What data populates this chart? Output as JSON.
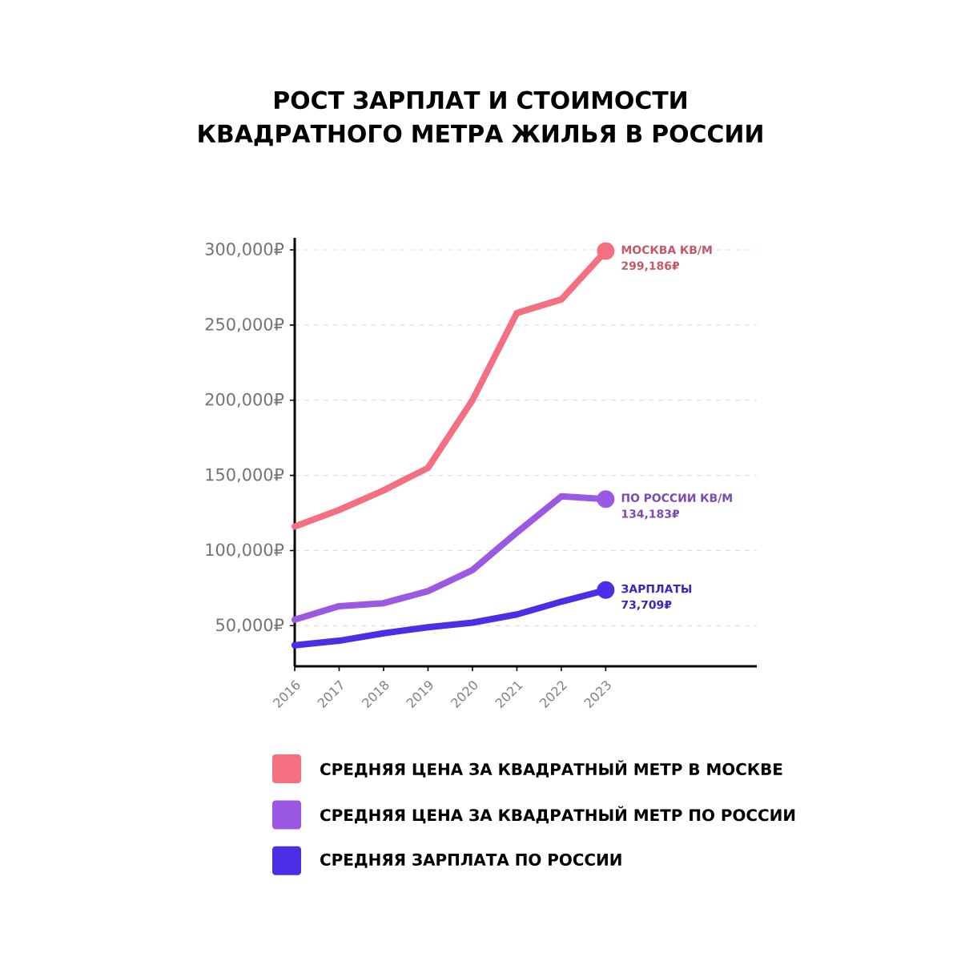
{
  "chart_data": {
    "type": "line",
    "title": "РОСТ ЗАРПЛАТ И СТОИМОСТИ КВАДРАТНОГО МЕТРА ЖИЛЬЯ В РОССИИ",
    "x": [
      2016,
      2017,
      2018,
      2019,
      2020,
      2021,
      2022,
      2023
    ],
    "series": [
      {
        "name": "СРЕДНЯЯ ЦЕНА ЗА КВАДРАТНЫЙ МЕТР В МОСКВЕ",
        "color": "#f46f80",
        "values": [
          116000,
          127000,
          140000,
          155000,
          200000,
          258000,
          267000,
          299186
        ]
      },
      {
        "name": "СРЕДНЯЯ ЦЕНА ЗА КВАДРАТНЫЙ МЕТР ПО РОССИИ",
        "color": "#9b59e3",
        "values": [
          54000,
          63000,
          65000,
          73000,
          87000,
          112000,
          136000,
          134183
        ]
      },
      {
        "name": "СРЕДНЯЯ ЗАРПЛАТА ПО РОССИИ",
        "color": "#4b2fe6",
        "values": [
          37000,
          40000,
          45000,
          49000,
          52000,
          57500,
          66000,
          73709
        ]
      }
    ],
    "annotations": [
      "МОСКВА КВ/М 299,186₽",
      "ПО РОССИИ КВ/М 134,183₽",
      "ЗАРПЛАТЫ 73,709₽"
    ],
    "xlim": [
      2016,
      2026.4
    ],
    "ylim": [
      23000,
      308000
    ],
    "xticks": [
      2016,
      2017,
      2018,
      2019,
      2020,
      2021,
      2022,
      2023
    ],
    "yticks": [
      {
        "value": 50000,
        "label": "50,000₽"
      },
      {
        "value": 100000,
        "label": "100,000₽"
      },
      {
        "value": 150000,
        "label": "150,000₽"
      },
      {
        "value": 200000,
        "label": "200,000₽"
      },
      {
        "value": 250000,
        "label": "250,000₽"
      },
      {
        "value": 300000,
        "label": "300,000₽"
      }
    ],
    "grid": "y",
    "legend": "bottom",
    "line_style": "solid"
  }
}
